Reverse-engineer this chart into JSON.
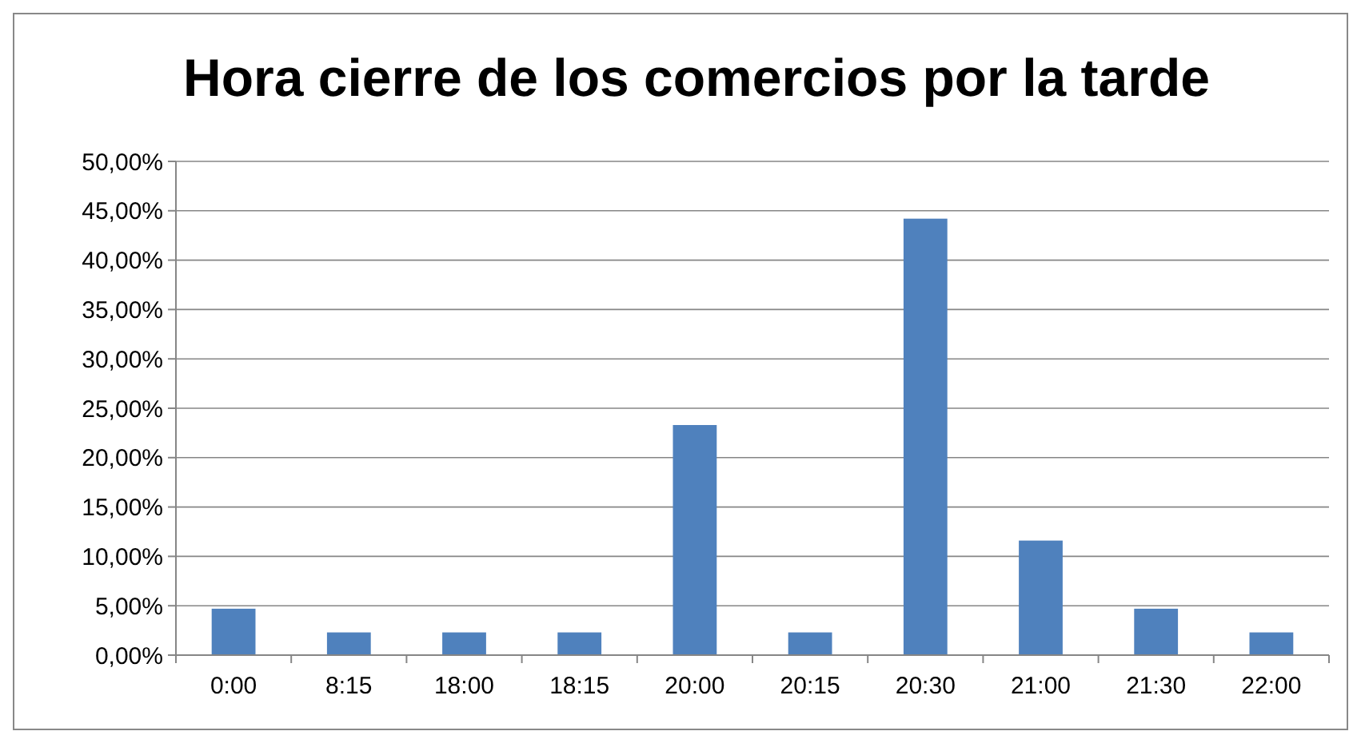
{
  "chart_data": {
    "type": "bar",
    "title": "Hora cierre de los comercios por la tarde",
    "categories": [
      "0:00",
      "8:15",
      "18:00",
      "18:15",
      "20:00",
      "20:15",
      "20:30",
      "21:00",
      "21:30",
      "22:00"
    ],
    "values": [
      4.7,
      2.3,
      2.3,
      2.3,
      23.3,
      2.3,
      44.2,
      11.6,
      4.7,
      2.3
    ],
    "color": "#4f81bd",
    "ylim": [
      0,
      50
    ],
    "yticks": [
      {
        "value": 0,
        "label": "0,00%"
      },
      {
        "value": 5,
        "label": "5,00%"
      },
      {
        "value": 10,
        "label": "10,00%"
      },
      {
        "value": 15,
        "label": "15,00%"
      },
      {
        "value": 20,
        "label": "20,00%"
      },
      {
        "value": 25,
        "label": "25,00%"
      },
      {
        "value": 30,
        "label": "30,00%"
      },
      {
        "value": 35,
        "label": "35,00%"
      },
      {
        "value": 40,
        "label": "40,00%"
      },
      {
        "value": 45,
        "label": "45,00%"
      },
      {
        "value": 50,
        "label": "50,00%"
      }
    ],
    "grid": "y"
  }
}
